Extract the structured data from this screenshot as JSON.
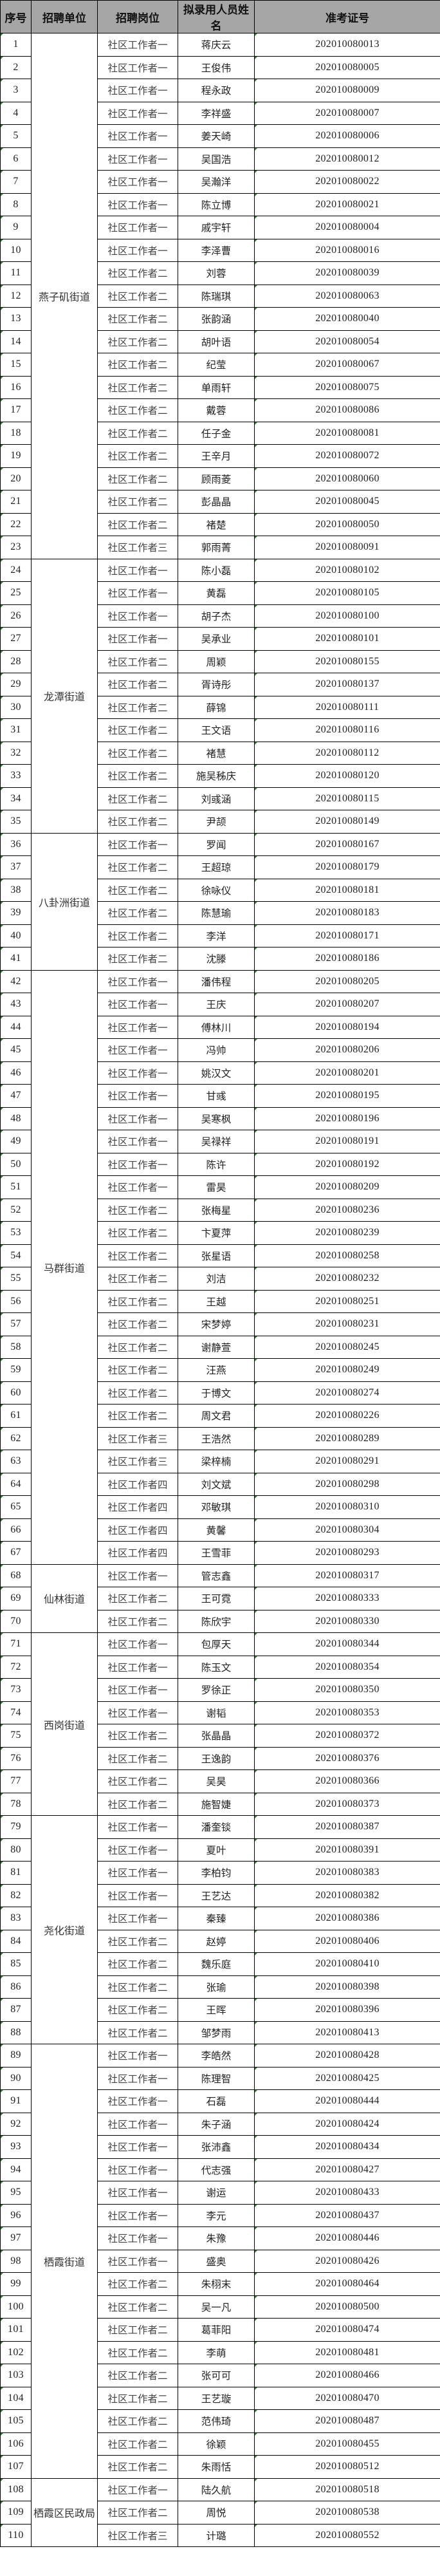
{
  "headers": [
    "序号",
    "招聘单位",
    "招聘岗位",
    "拟录用人员姓名",
    "准考证号"
  ],
  "colors": {
    "header_bg": "#a6a6a6",
    "indicator": "#1a8a1a"
  },
  "units": [
    {
      "name": "燕子矶街道",
      "rows": [
        [
          "1",
          "社区工作者一",
          "蒋庆云",
          "202010080013"
        ],
        [
          "2",
          "社区工作者一",
          "王俊伟",
          "202010080005"
        ],
        [
          "3",
          "社区工作者一",
          "程永政",
          "202010080009"
        ],
        [
          "4",
          "社区工作者一",
          "李祥盛",
          "202010080007"
        ],
        [
          "5",
          "社区工作者一",
          "姜天崎",
          "202010080006"
        ],
        [
          "6",
          "社区工作者一",
          "吴国浩",
          "202010080012"
        ],
        [
          "7",
          "社区工作者一",
          "吴瀚洋",
          "202010080022"
        ],
        [
          "8",
          "社区工作者一",
          "陈立博",
          "202010080021"
        ],
        [
          "9",
          "社区工作者一",
          "戚宇轩",
          "202010080004"
        ],
        [
          "10",
          "社区工作者一",
          "李泽曹",
          "202010080016"
        ],
        [
          "11",
          "社区工作者二",
          "刘蓉",
          "202010080039"
        ],
        [
          "12",
          "社区工作者二",
          "陈瑞琪",
          "202010080063"
        ],
        [
          "13",
          "社区工作者二",
          "张韵涵",
          "202010080040"
        ],
        [
          "14",
          "社区工作者二",
          "胡叶语",
          "202010080054"
        ],
        [
          "15",
          "社区工作者二",
          "纪莹",
          "202010080067"
        ],
        [
          "16",
          "社区工作者二",
          "单雨轩",
          "202010080075"
        ],
        [
          "17",
          "社区工作者二",
          "戴蓉",
          "202010080086"
        ],
        [
          "18",
          "社区工作者二",
          "任子金",
          "202010080081"
        ],
        [
          "19",
          "社区工作者二",
          "王辛月",
          "202010080072"
        ],
        [
          "20",
          "社区工作者二",
          "顾雨菱",
          "202010080060"
        ],
        [
          "21",
          "社区工作者二",
          "彭晶晶",
          "202010080045"
        ],
        [
          "22",
          "社区工作者二",
          "褚楚",
          "202010080050"
        ],
        [
          "23",
          "社区工作者三",
          "郭雨菁",
          "202010080091"
        ]
      ]
    },
    {
      "name": "龙潭街道",
      "rows": [
        [
          "24",
          "社区工作者一",
          "陈小磊",
          "202010080102"
        ],
        [
          "25",
          "社区工作者一",
          "黄磊",
          "202010080105"
        ],
        [
          "26",
          "社区工作者一",
          "胡子杰",
          "202010080100"
        ],
        [
          "27",
          "社区工作者一",
          "吴承业",
          "202010080101"
        ],
        [
          "28",
          "社区工作者二",
          "周颖",
          "202010080155"
        ],
        [
          "29",
          "社区工作者二",
          "胥诗彤",
          "202010080137"
        ],
        [
          "30",
          "社区工作者二",
          "薛锦",
          "202010080111"
        ],
        [
          "31",
          "社区工作者二",
          "王文语",
          "202010080116"
        ],
        [
          "32",
          "社区工作者二",
          "褚慧",
          "202010080112"
        ],
        [
          "33",
          "社区工作者二",
          "施吴秭庆",
          "202010080120"
        ],
        [
          "34",
          "社区工作者二",
          "刘彧涵",
          "202010080115"
        ],
        [
          "35",
          "社区工作者二",
          "尹颉",
          "202010080149"
        ]
      ]
    },
    {
      "name": "八卦洲街道",
      "rows": [
        [
          "36",
          "社区工作者一",
          "罗闻",
          "202010080167"
        ],
        [
          "37",
          "社区工作者二",
          "王超琼",
          "202010080179"
        ],
        [
          "38",
          "社区工作者二",
          "徐咏仪",
          "202010080181"
        ],
        [
          "39",
          "社区工作者二",
          "陈慧瑜",
          "202010080183"
        ],
        [
          "40",
          "社区工作者二",
          "李洋",
          "202010080171"
        ],
        [
          "41",
          "社区工作者二",
          "沈滕",
          "202010080186"
        ]
      ]
    },
    {
      "name": "马群街道",
      "rows": [
        [
          "42",
          "社区工作者一",
          "潘伟程",
          "202010080205"
        ],
        [
          "43",
          "社区工作者一",
          "王庆",
          "202010080207"
        ],
        [
          "44",
          "社区工作者一",
          "傅林川",
          "202010080194"
        ],
        [
          "45",
          "社区工作者一",
          "冯帅",
          "202010080206"
        ],
        [
          "46",
          "社区工作者一",
          "姚汉文",
          "202010080201"
        ],
        [
          "47",
          "社区工作者一",
          "甘彧",
          "202010080195"
        ],
        [
          "48",
          "社区工作者一",
          "吴寒枫",
          "202010080196"
        ],
        [
          "49",
          "社区工作者一",
          "吴禄祥",
          "202010080191"
        ],
        [
          "50",
          "社区工作者一",
          "陈许",
          "202010080192"
        ],
        [
          "51",
          "社区工作者一",
          "雷昊",
          "202010080209"
        ],
        [
          "52",
          "社区工作者二",
          "张梅星",
          "202010080236"
        ],
        [
          "53",
          "社区工作者二",
          "卞夏萍",
          "202010080239"
        ],
        [
          "54",
          "社区工作者二",
          "张星语",
          "202010080258"
        ],
        [
          "55",
          "社区工作者二",
          "刘洁",
          "202010080232"
        ],
        [
          "56",
          "社区工作者二",
          "王越",
          "202010080251"
        ],
        [
          "57",
          "社区工作者二",
          "宋梦婷",
          "202010080231"
        ],
        [
          "58",
          "社区工作者二",
          "谢静萱",
          "202010080245"
        ],
        [
          "59",
          "社区工作者二",
          "汪燕",
          "202010080249"
        ],
        [
          "60",
          "社区工作者二",
          "于博文",
          "202010080274"
        ],
        [
          "61",
          "社区工作者二",
          "周文君",
          "202010080226"
        ],
        [
          "62",
          "社区工作者三",
          "王浩然",
          "202010080289"
        ],
        [
          "63",
          "社区工作者三",
          "梁梓楠",
          "202010080291"
        ],
        [
          "64",
          "社区工作者四",
          "刘文斌",
          "202010080298"
        ],
        [
          "65",
          "社区工作者四",
          "邓敏琪",
          "202010080310"
        ],
        [
          "66",
          "社区工作者四",
          "黄馨",
          "202010080304"
        ],
        [
          "67",
          "社区工作者四",
          "王雪菲",
          "202010080293"
        ]
      ]
    },
    {
      "name": "仙林街道",
      "rows": [
        [
          "68",
          "社区工作者一",
          "管志鑫",
          "202010080317"
        ],
        [
          "69",
          "社区工作者二",
          "王可霓",
          "202010080333"
        ],
        [
          "70",
          "社区工作者二",
          "陈欣宇",
          "202010080330"
        ]
      ]
    },
    {
      "name": "西岗街道",
      "rows": [
        [
          "71",
          "社区工作者一",
          "包厚天",
          "202010080344"
        ],
        [
          "72",
          "社区工作者一",
          "陈玉文",
          "202010080354"
        ],
        [
          "73",
          "社区工作者一",
          "罗徐正",
          "202010080350"
        ],
        [
          "74",
          "社区工作者一",
          "谢韬",
          "202010080353"
        ],
        [
          "75",
          "社区工作者二",
          "张晶晶",
          "202010080372"
        ],
        [
          "76",
          "社区工作者二",
          "王逸韵",
          "202010080376"
        ],
        [
          "77",
          "社区工作者二",
          "吴昊",
          "202010080366"
        ],
        [
          "78",
          "社区工作者二",
          "施智婕",
          "202010080373"
        ]
      ]
    },
    {
      "name": "尧化街道",
      "rows": [
        [
          "79",
          "社区工作者一",
          "潘奎锬",
          "202010080387"
        ],
        [
          "80",
          "社区工作者一",
          "夏叶",
          "202010080391"
        ],
        [
          "81",
          "社区工作者一",
          "李柏钧",
          "202010080383"
        ],
        [
          "82",
          "社区工作者一",
          "王艺达",
          "202010080382"
        ],
        [
          "83",
          "社区工作者一",
          "秦臻",
          "202010080386"
        ],
        [
          "84",
          "社区工作者二",
          "赵婷",
          "202010080406"
        ],
        [
          "85",
          "社区工作者二",
          "魏乐庭",
          "202010080410"
        ],
        [
          "86",
          "社区工作者二",
          "张瑜",
          "202010080398"
        ],
        [
          "87",
          "社区工作者二",
          "王晖",
          "202010080396"
        ],
        [
          "88",
          "社区工作者二",
          "邹梦雨",
          "202010080413"
        ]
      ]
    },
    {
      "name": "栖霞街道",
      "rows": [
        [
          "89",
          "社区工作者一",
          "李皓然",
          "202010080428"
        ],
        [
          "90",
          "社区工作者一",
          "陈理智",
          "202010080425"
        ],
        [
          "91",
          "社区工作者一",
          "石磊",
          "202010080444"
        ],
        [
          "92",
          "社区工作者一",
          "朱子涵",
          "202010080424"
        ],
        [
          "93",
          "社区工作者一",
          "张沛鑫",
          "202010080434"
        ],
        [
          "94",
          "社区工作者一",
          "代志强",
          "202010080427"
        ],
        [
          "95",
          "社区工作者一",
          "谢运",
          "202010080433"
        ],
        [
          "96",
          "社区工作者一",
          "李元",
          "202010080437"
        ],
        [
          "97",
          "社区工作者一",
          "朱豫",
          "202010080446"
        ],
        [
          "98",
          "社区工作者一",
          "盛奥",
          "202010080426"
        ],
        [
          "99",
          "社区工作者二",
          "朱栩末",
          "202010080464"
        ],
        [
          "100",
          "社区工作者二",
          "吴一凡",
          "202010080500"
        ],
        [
          "101",
          "社区工作者二",
          "葛菲阳",
          "202010080474"
        ],
        [
          "102",
          "社区工作者二",
          "李萌",
          "202010080481"
        ],
        [
          "103",
          "社区工作者二",
          "张可可",
          "202010080466"
        ],
        [
          "104",
          "社区工作者二",
          "王艺璇",
          "202010080470"
        ],
        [
          "105",
          "社区工作者二",
          "范伟琦",
          "202010080487"
        ],
        [
          "106",
          "社区工作者二",
          "徐颖",
          "202010080455"
        ],
        [
          "107",
          "社区工作者二",
          "朱雨恬",
          "202010080512"
        ]
      ]
    },
    {
      "name": "栖霞区民政局",
      "rows": [
        [
          "108",
          "社区工作者一",
          "陆久航",
          "202010080518"
        ],
        [
          "109",
          "社区工作者二",
          "周悦",
          "202010080538"
        ],
        [
          "110",
          "社区工作者三",
          "计璐",
          "202010080552"
        ]
      ]
    }
  ]
}
